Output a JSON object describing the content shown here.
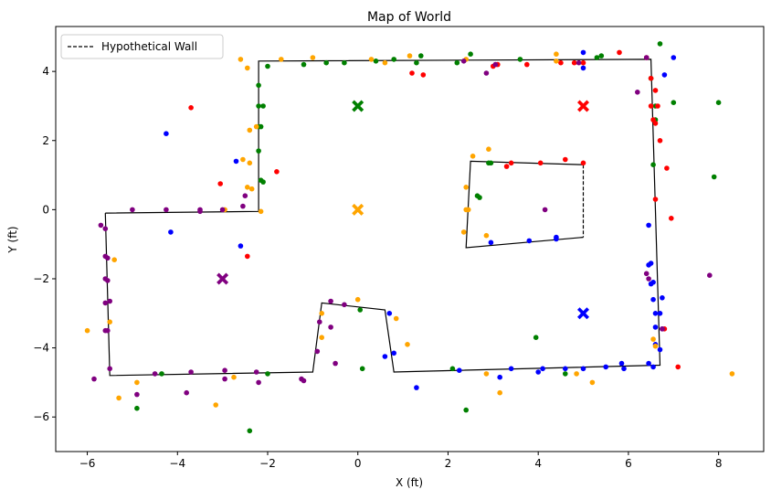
{
  "chart_data": {
    "type": "scatter",
    "title": "Map of World",
    "xlabel": "X (ft)",
    "ylabel": "Y (ft)",
    "xlim": [
      -6.7,
      9.0
    ],
    "ylim": [
      -7.0,
      5.3
    ],
    "xticks": [
      -6,
      -4,
      -2,
      0,
      2,
      4,
      6,
      8
    ],
    "yticks": [
      -6,
      -4,
      -2,
      0,
      2,
      4
    ],
    "grid": false,
    "legend": {
      "position": "top-left",
      "entries": [
        "Hypothetical Wall"
      ]
    },
    "colors": {
      "red": "#ff0000",
      "green": "#008000",
      "blue": "#0000ff",
      "orange": "#ffa500",
      "purple": "#800080",
      "line": "#000000"
    },
    "walls": {
      "outer": [
        [
          -5.6,
          -0.1
        ],
        [
          -2.2,
          -0.05
        ],
        [
          -2.2,
          4.3
        ],
        [
          6.5,
          4.35
        ],
        [
          6.7,
          -4.5
        ],
        [
          0.8,
          -4.7
        ],
        [
          0.6,
          -2.9
        ],
        [
          -0.8,
          -2.7
        ],
        [
          -1.0,
          -4.7
        ],
        [
          -5.5,
          -4.8
        ],
        [
          -5.6,
          -0.1
        ]
      ],
      "inner": [
        [
          5.0,
          1.3
        ],
        [
          2.5,
          1.4
        ],
        [
          2.4,
          -1.1
        ],
        [
          5.0,
          -0.8
        ]
      ],
      "hypothetical": [
        [
          5.0,
          1.3
        ],
        [
          5.0,
          -0.8
        ]
      ]
    },
    "markers": [
      {
        "color": "green",
        "x": 0,
        "y": 3
      },
      {
        "color": "red",
        "x": 5,
        "y": 3
      },
      {
        "color": "orange",
        "x": 0,
        "y": 0
      },
      {
        "color": "purple",
        "x": -3,
        "y": -2
      },
      {
        "color": "blue",
        "x": 5,
        "y": -3
      }
    ],
    "series": [
      {
        "color": "green",
        "points": [
          [
            -2.2,
            3.6
          ],
          [
            -2.2,
            3.0
          ],
          [
            -2.1,
            3.0
          ],
          [
            -2.2,
            2.4
          ],
          [
            -2.15,
            2.4
          ],
          [
            -2.2,
            1.7
          ],
          [
            -2.1,
            0.8
          ],
          [
            -2.15,
            0.85
          ],
          [
            -2.0,
            4.15
          ],
          [
            -1.2,
            4.2
          ],
          [
            -0.7,
            4.25
          ],
          [
            -0.3,
            4.25
          ],
          [
            0.4,
            4.3
          ],
          [
            0.8,
            4.35
          ],
          [
            1.3,
            4.25
          ],
          [
            1.4,
            4.45
          ],
          [
            2.2,
            4.25
          ],
          [
            2.5,
            4.5
          ],
          [
            3.6,
            4.35
          ],
          [
            5.3,
            4.4
          ],
          [
            5.4,
            4.45
          ],
          [
            6.5,
            3.8
          ],
          [
            6.6,
            3.0
          ],
          [
            6.6,
            2.6
          ],
          [
            6.7,
            4.8
          ],
          [
            7.0,
            3.1
          ],
          [
            6.55,
            1.3
          ],
          [
            8.0,
            3.1
          ],
          [
            7.9,
            0.95
          ],
          [
            2.9,
            1.35
          ],
          [
            2.95,
            1.35
          ],
          [
            2.65,
            0.4
          ],
          [
            2.7,
            0.35
          ],
          [
            0.05,
            -2.9
          ],
          [
            0.1,
            -4.6
          ],
          [
            3.95,
            -3.7
          ],
          [
            4.6,
            -4.75
          ],
          [
            2.1,
            -4.6
          ],
          [
            2.4,
            -5.8
          ],
          [
            -4.35,
            -4.75
          ],
          [
            -4.9,
            -5.75
          ],
          [
            -2.0,
            -4.75
          ],
          [
            -2.4,
            -6.4
          ]
        ]
      },
      {
        "color": "red",
        "points": [
          [
            -3.7,
            2.95
          ],
          [
            -1.8,
            1.1
          ],
          [
            -3.05,
            0.75
          ],
          [
            -2.45,
            -1.35
          ],
          [
            1.2,
            3.95
          ],
          [
            1.45,
            3.9
          ],
          [
            3.0,
            4.15
          ],
          [
            3.1,
            4.2
          ],
          [
            3.75,
            4.2
          ],
          [
            4.5,
            4.25
          ],
          [
            4.8,
            4.25
          ],
          [
            5.0,
            4.25
          ],
          [
            5.8,
            4.55
          ],
          [
            6.4,
            4.4
          ],
          [
            6.5,
            3.8
          ],
          [
            6.6,
            3.45
          ],
          [
            6.5,
            3.0
          ],
          [
            6.65,
            3.0
          ],
          [
            6.55,
            2.6
          ],
          [
            6.6,
            2.5
          ],
          [
            6.7,
            2.0
          ],
          [
            6.85,
            1.2
          ],
          [
            6.95,
            -0.25
          ],
          [
            6.6,
            0.3
          ],
          [
            3.4,
            1.35
          ],
          [
            3.3,
            1.25
          ],
          [
            4.05,
            1.35
          ],
          [
            4.6,
            1.45
          ],
          [
            5.0,
            1.35
          ],
          [
            7.1,
            -4.55
          ],
          [
            6.8,
            -3.45
          ]
        ]
      },
      {
        "color": "blue",
        "points": [
          [
            -4.25,
            2.2
          ],
          [
            -2.7,
            1.4
          ],
          [
            -4.15,
            -0.65
          ],
          [
            -2.6,
            -1.05
          ],
          [
            5.0,
            4.55
          ],
          [
            5.0,
            4.1
          ],
          [
            6.8,
            3.9
          ],
          [
            7.0,
            4.4
          ],
          [
            6.45,
            -0.45
          ],
          [
            6.5,
            -1.55
          ],
          [
            6.45,
            -1.6
          ],
          [
            6.5,
            -2.15
          ],
          [
            6.55,
            -2.1
          ],
          [
            6.75,
            -2.55
          ],
          [
            6.55,
            -2.6
          ],
          [
            6.6,
            -3.0
          ],
          [
            6.7,
            -3.0
          ],
          [
            6.6,
            -3.4
          ],
          [
            6.75,
            -3.45
          ],
          [
            6.6,
            -3.9
          ],
          [
            6.7,
            -4.05
          ],
          [
            6.45,
            -4.45
          ],
          [
            6.55,
            -4.55
          ],
          [
            2.95,
            -0.95
          ],
          [
            3.8,
            -0.9
          ],
          [
            4.4,
            -0.8
          ],
          [
            4.4,
            -0.85
          ],
          [
            0.7,
            -3.0
          ],
          [
            0.6,
            -4.25
          ],
          [
            0.8,
            -4.15
          ],
          [
            1.3,
            -5.15
          ],
          [
            2.25,
            -4.65
          ],
          [
            3.15,
            -4.85
          ],
          [
            3.4,
            -4.6
          ],
          [
            4.0,
            -4.7
          ],
          [
            4.1,
            -4.6
          ],
          [
            4.6,
            -4.6
          ],
          [
            5.0,
            -4.6
          ],
          [
            5.5,
            -4.55
          ],
          [
            5.85,
            -4.45
          ],
          [
            5.9,
            -4.6
          ]
        ]
      },
      {
        "color": "orange",
        "points": [
          [
            -1.7,
            4.35
          ],
          [
            -2.45,
            4.1
          ],
          [
            -2.6,
            4.35
          ],
          [
            -1.0,
            4.4
          ],
          [
            0.3,
            4.35
          ],
          [
            0.6,
            4.25
          ],
          [
            1.15,
            4.45
          ],
          [
            2.4,
            4.35
          ],
          [
            4.4,
            4.3
          ],
          [
            4.4,
            4.5
          ],
          [
            -2.4,
            2.3
          ],
          [
            -2.25,
            2.4
          ],
          [
            -2.55,
            1.45
          ],
          [
            -2.4,
            1.35
          ],
          [
            -2.45,
            0.65
          ],
          [
            -2.35,
            0.6
          ],
          [
            -2.15,
            -0.05
          ],
          [
            -2.95,
            0.0
          ],
          [
            2.55,
            1.55
          ],
          [
            2.9,
            1.75
          ],
          [
            2.4,
            0.65
          ],
          [
            2.4,
            0.0
          ],
          [
            2.45,
            0.0
          ],
          [
            2.35,
            -0.65
          ],
          [
            2.85,
            -0.75
          ],
          [
            -5.4,
            -1.45
          ],
          [
            -5.5,
            -3.25
          ],
          [
            -6.0,
            -3.5
          ],
          [
            -0.8,
            -3.7
          ],
          [
            -0.8,
            -3.0
          ],
          [
            0.0,
            -2.6
          ],
          [
            0.85,
            -3.15
          ],
          [
            1.1,
            -3.9
          ],
          [
            2.85,
            -4.75
          ],
          [
            3.15,
            -5.3
          ],
          [
            4.85,
            -4.75
          ],
          [
            5.2,
            -5.0
          ],
          [
            6.55,
            -3.75
          ],
          [
            6.6,
            -3.95
          ],
          [
            8.3,
            -4.75
          ],
          [
            -5.3,
            -5.45
          ],
          [
            -4.9,
            -5.0
          ],
          [
            -3.15,
            -5.65
          ],
          [
            -2.75,
            -4.85
          ]
        ]
      },
      {
        "color": "purple",
        "points": [
          [
            -5.7,
            -0.45
          ],
          [
            -5.6,
            -0.55
          ],
          [
            -5.6,
            -1.35
          ],
          [
            -5.55,
            -1.4
          ],
          [
            -5.6,
            -2.0
          ],
          [
            -5.55,
            -2.05
          ],
          [
            -5.6,
            -2.7
          ],
          [
            -5.5,
            -2.65
          ],
          [
            -5.6,
            -3.5
          ],
          [
            -5.55,
            -3.5
          ],
          [
            -5.5,
            -4.6
          ],
          [
            -5.0,
            0.0
          ],
          [
            -4.25,
            0.0
          ],
          [
            -3.5,
            0.0
          ],
          [
            -3.5,
            -0.05
          ],
          [
            -3.0,
            0.0
          ],
          [
            -2.5,
            0.4
          ],
          [
            -2.55,
            0.1
          ],
          [
            -5.85,
            -4.9
          ],
          [
            -4.5,
            -4.75
          ],
          [
            -3.7,
            -4.7
          ],
          [
            -2.95,
            -4.65
          ],
          [
            -2.95,
            -4.9
          ],
          [
            -2.25,
            -4.7
          ],
          [
            -2.2,
            -5.0
          ],
          [
            -1.25,
            -4.9
          ],
          [
            -1.2,
            -4.95
          ],
          [
            -4.9,
            -5.35
          ],
          [
            -3.8,
            -5.3
          ],
          [
            -0.6,
            -2.65
          ],
          [
            -0.85,
            -3.25
          ],
          [
            -0.6,
            -3.4
          ],
          [
            -0.9,
            -4.1
          ],
          [
            -0.5,
            -4.45
          ],
          [
            -0.3,
            -2.75
          ],
          [
            4.15,
            0.0
          ],
          [
            6.2,
            3.4
          ],
          [
            6.4,
            -1.85
          ],
          [
            6.45,
            -2.0
          ],
          [
            2.35,
            4.3
          ],
          [
            2.85,
            3.95
          ],
          [
            3.05,
            4.2
          ],
          [
            4.9,
            4.25
          ],
          [
            6.4,
            4.4
          ],
          [
            6.75,
            -3.45
          ],
          [
            7.8,
            -1.9
          ]
        ]
      }
    ]
  }
}
